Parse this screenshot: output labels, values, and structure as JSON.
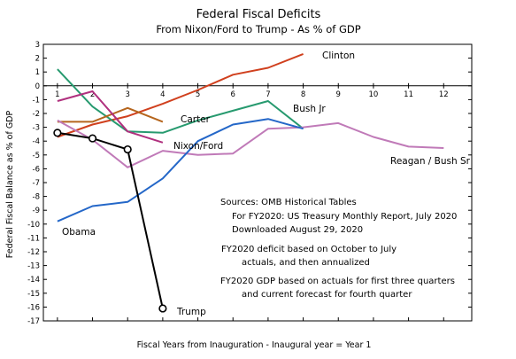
{
  "chart_data": {
    "type": "line",
    "title": "Federal Fiscal Deficits",
    "subtitle": "From Nixon/Ford to Trump - As % of GDP",
    "xlabel": "Fiscal Years from Inauguration - Inaugural year = Year 1",
    "ylabel": "Federal Fiscal Balance as % of GDP",
    "xlim": [
      0.6,
      12.8
    ],
    "ylim": [
      -17,
      3
    ],
    "x_ticks": [
      1,
      2,
      3,
      4,
      5,
      6,
      7,
      8,
      9,
      10,
      11,
      12
    ],
    "y_ticks": [
      3,
      2,
      1,
      0,
      -1,
      -2,
      -3,
      -4,
      -5,
      -6,
      -7,
      -8,
      -9,
      -10,
      -11,
      -12,
      -13,
      -14,
      -15,
      -16,
      -17
    ],
    "series": [
      {
        "name": "Clinton",
        "color": "#d0401e",
        "markers": false,
        "x": [
          1,
          2,
          3,
          4,
          5,
          6,
          7,
          8
        ],
        "y": [
          -3.7,
          -2.8,
          -2.2,
          -1.3,
          -0.3,
          0.8,
          1.3,
          2.3
        ]
      },
      {
        "name": "Bush Jr",
        "color": "#279a6f",
        "markers": false,
        "x": [
          1,
          2,
          3,
          4,
          5,
          6,
          7,
          8
        ],
        "y": [
          1.2,
          -1.5,
          -3.3,
          -3.4,
          -2.5,
          -1.8,
          -1.1,
          -3.1
        ]
      },
      {
        "name": "Carter",
        "color": "#b5651d",
        "markers": false,
        "x": [
          1,
          2,
          3,
          4
        ],
        "y": [
          -2.6,
          -2.6,
          -1.6,
          -2.6
        ]
      },
      {
        "name": "Nixon/Ford",
        "color": "#b0307e",
        "markers": false,
        "x": [
          1,
          2,
          3,
          4
        ],
        "y": [
          -1.1,
          -0.4,
          -3.3,
          -4.1
        ]
      },
      {
        "name": "Reagan / Bush Sr",
        "color": "#c07ab8",
        "markers": false,
        "x": [
          1,
          2,
          3,
          4,
          5,
          6,
          7,
          8,
          9,
          10,
          11,
          12
        ],
        "y": [
          -2.5,
          -3.9,
          -5.9,
          -4.7,
          -5.0,
          -4.9,
          -3.1,
          -3.0,
          -2.7,
          -3.7,
          -4.4,
          -4.5
        ]
      },
      {
        "name": "Obama",
        "color": "#2467c8",
        "markers": false,
        "x": [
          1,
          2,
          3,
          4,
          5,
          6,
          7,
          8
        ],
        "y": [
          -9.8,
          -8.7,
          -8.4,
          -6.7,
          -4.0,
          -2.8,
          -2.4,
          -3.1
        ]
      },
      {
        "name": "Trump",
        "color": "#000000",
        "markers": true,
        "x": [
          1,
          2,
          3,
          4
        ],
        "y": [
          -3.4,
          -3.8,
          -4.6,
          -16.1
        ]
      }
    ],
    "annotations": [
      "Sources:  OMB Historical Tables",
      "For FY2020:  US Treasury Monthly Report, July 2020",
      "Downloaded August 29, 2020",
      "FY2020 deficit based on October to July",
      "actuals, and then annualized",
      "FY2020 GDP based on actuals for first three quarters",
      "and current forecast for fourth quarter"
    ],
    "grid": false,
    "legend": "none"
  }
}
